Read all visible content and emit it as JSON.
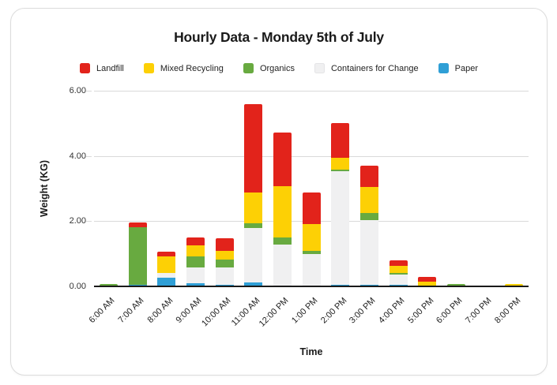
{
  "card": {
    "title": "Hourly Data - Monday 5th of July",
    "xlabel_title": "Time",
    "ylabel_title": "Weight (KG)"
  },
  "chart_data": {
    "type": "bar",
    "stacked": true,
    "title": "Hourly Data - Monday 5th of July",
    "xlabel": "Time",
    "ylabel": "Weight (KG)",
    "ylim": [
      0,
      6
    ],
    "y_ticks": [
      0,
      2,
      4,
      6
    ],
    "y_tick_labels": [
      "0.00",
      "2.00",
      "4.00",
      "6.00"
    ],
    "grid": true,
    "legend_position": "top",
    "categories": [
      "6:00 AM",
      "7:00 AM",
      "8:00 AM",
      "9:00 AM",
      "10:00 AM",
      "11:00 AM",
      "12:00 PM",
      "1:00 PM",
      "2:00 PM",
      "3:00 PM",
      "4:00 PM",
      "5:00 PM",
      "6:00 PM",
      "7:00 PM",
      "8:00 PM"
    ],
    "series": [
      {
        "name": "Paper",
        "color": "#2f9fd6",
        "values": [
          0,
          0.05,
          0.27,
          0.1,
          0.04,
          0.11,
          0,
          0,
          0.05,
          0.04,
          0.05,
          0,
          0,
          0,
          0
        ]
      },
      {
        "name": "Containers for Change",
        "color": "#f0f0f1",
        "values": [
          0,
          0,
          0.14,
          0.47,
          0.54,
          1.67,
          1.28,
          1.0,
          3.48,
          2.0,
          0.31,
          0,
          0,
          0,
          0
        ]
      },
      {
        "name": "Organics",
        "color": "#68aa40",
        "values": [
          0.08,
          1.77,
          0,
          0.36,
          0.24,
          0.15,
          0.22,
          0.08,
          0.04,
          0.22,
          0.04,
          0,
          0.07,
          0,
          0
        ]
      },
      {
        "name": "Mixed Recycling",
        "color": "#fdd005",
        "values": [
          0,
          0,
          0.51,
          0.34,
          0.27,
          0.95,
          1.58,
          0.83,
          0.38,
          0.8,
          0.22,
          0.15,
          0,
          0,
          0.07
        ]
      },
      {
        "name": "Landfill",
        "color": "#e2231b",
        "values": [
          0,
          0.15,
          0.14,
          0.24,
          0.38,
          2.72,
          1.65,
          0.98,
          1.05,
          0.64,
          0.18,
          0.15,
          0,
          0,
          0
        ]
      }
    ],
    "legend_order": [
      "Landfill",
      "Mixed Recycling",
      "Organics",
      "Containers for Change",
      "Paper"
    ],
    "totals": [
      0.08,
      1.97,
      1.06,
      1.51,
      1.47,
      5.6,
      4.73,
      2.89,
      5.0,
      3.7,
      0.8,
      0.3,
      0.07,
      0,
      0.07
    ]
  },
  "colors": {
    "grid": "#d9d9d9",
    "axis": "#1a1a1a",
    "card_border": "#dcdcdc"
  }
}
